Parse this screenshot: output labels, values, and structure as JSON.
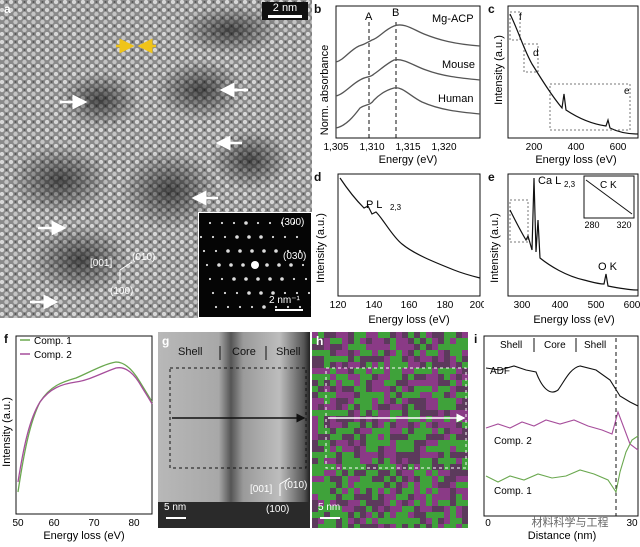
{
  "panel_a": {
    "label": "a",
    "scale_bar": "2 nm",
    "fft_scale_bar": "2 nm⁻¹",
    "fft_spots": [
      "(300)",
      "(030)"
    ],
    "axes": {
      "a1": "[001]",
      "a2": "(010)",
      "a3": "(100)"
    }
  },
  "panel_b": {
    "label": "b",
    "ylabel": "Norm. absorbance",
    "xlabel": "Energy (eV)",
    "ticks": [
      "1,305",
      "1,310",
      "1,315",
      "1,320"
    ],
    "markA": "A",
    "markB": "B",
    "series": [
      "Mg-ACP",
      "Mouse",
      "Human"
    ]
  },
  "panel_c": {
    "label": "c",
    "ylabel": "Intensity (a.u.)",
    "xlabel": "Energy loss (eV)",
    "ticks": [
      "200",
      "400",
      "600"
    ],
    "box_labels": [
      "f",
      "d",
      "e"
    ]
  },
  "panel_d": {
    "label": "d",
    "ylabel": "Intensity (a.u.)",
    "xlabel": "Energy loss (eV)",
    "ticks": [
      "120",
      "140",
      "160",
      "180",
      "200"
    ],
    "peak": "P L",
    "peak_sub": "2,3"
  },
  "panel_e": {
    "label": "e",
    "ylabel": "Intensity (a.u.)",
    "xlabel": "Energy loss (eV)",
    "ticks": [
      "300",
      "400",
      "500",
      "600"
    ],
    "ca": "Ca L",
    "ca_sub": "2,3",
    "ok": "O K",
    "inset_title": "C K",
    "inset_ticks": [
      "280",
      "320"
    ]
  },
  "panel_f": {
    "label": "f",
    "ylabel": "Intensity (a.u.)",
    "xlabel": "Energy loss (eV)",
    "ticks": [
      "50",
      "60",
      "70",
      "80"
    ],
    "legend": [
      "Comp. 1",
      "Comp. 2"
    ]
  },
  "panel_g": {
    "label": "g",
    "regions": [
      "Shell",
      "Core",
      "Shell"
    ],
    "scale_bar": "5 nm",
    "axes": {
      "a1": "[001]",
      "a2": "(010)",
      "a3": "(100)"
    }
  },
  "panel_h": {
    "label": "h",
    "scale_bar": "5 nm"
  },
  "panel_i": {
    "label": "i",
    "regions": [
      "Shell",
      "Core",
      "Shell"
    ],
    "traces": [
      "ADF",
      "Comp. 2",
      "Comp. 1"
    ],
    "xlabel": "Distance (nm)",
    "ticks": [
      "0",
      "30"
    ],
    "watermark": "材料科学与工程"
  },
  "colors": {
    "comp1": "#6aa84f",
    "comp2": "#a64d9b",
    "arrow_yellow": "#f0c419",
    "dark": "#222222"
  }
}
